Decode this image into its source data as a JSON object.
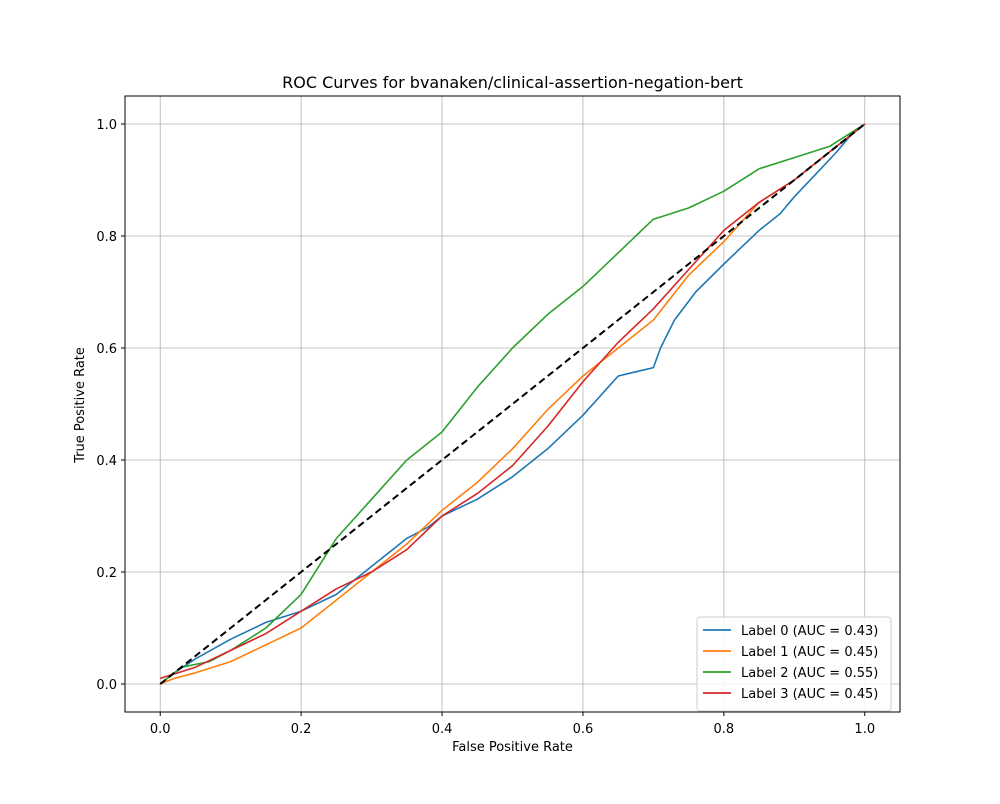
{
  "chart_data": {
    "type": "line",
    "title": "ROC Curves for bvanaken/clinical-assertion-negation-bert",
    "xlabel": "False Positive Rate",
    "ylabel": "True Positive Rate",
    "xlim": [
      -0.05,
      1.05
    ],
    "ylim": [
      -0.05,
      1.05
    ],
    "xticks": [
      "0.0",
      "0.2",
      "0.4",
      "0.6",
      "0.8",
      "1.0"
    ],
    "yticks": [
      "0.0",
      "0.2",
      "0.4",
      "0.6",
      "0.8",
      "1.0"
    ],
    "grid": true,
    "legend_position": "lower-right",
    "series": [
      {
        "name": "Label 0 (AUC = 0.43)",
        "color": "#1f77b4",
        "points": [
          [
            0,
            0
          ],
          [
            0.02,
            0.02
          ],
          [
            0.05,
            0.045
          ],
          [
            0.1,
            0.08
          ],
          [
            0.15,
            0.11
          ],
          [
            0.2,
            0.13
          ],
          [
            0.25,
            0.16
          ],
          [
            0.3,
            0.21
          ],
          [
            0.35,
            0.26
          ],
          [
            0.38,
            0.28
          ],
          [
            0.4,
            0.3
          ],
          [
            0.45,
            0.33
          ],
          [
            0.5,
            0.37
          ],
          [
            0.55,
            0.42
          ],
          [
            0.6,
            0.48
          ],
          [
            0.65,
            0.55
          ],
          [
            0.7,
            0.565
          ],
          [
            0.71,
            0.6
          ],
          [
            0.73,
            0.65
          ],
          [
            0.76,
            0.7
          ],
          [
            0.8,
            0.75
          ],
          [
            0.85,
            0.81
          ],
          [
            0.88,
            0.84
          ],
          [
            0.9,
            0.87
          ],
          [
            0.93,
            0.91
          ],
          [
            0.96,
            0.95
          ],
          [
            0.98,
            0.98
          ],
          [
            1,
            1
          ]
        ]
      },
      {
        "name": "Label 1 (AUC = 0.45)",
        "color": "#ff7f0e",
        "points": [
          [
            0,
            0
          ],
          [
            0.02,
            0.01
          ],
          [
            0.05,
            0.02
          ],
          [
            0.1,
            0.04
          ],
          [
            0.15,
            0.07
          ],
          [
            0.2,
            0.1
          ],
          [
            0.25,
            0.15
          ],
          [
            0.3,
            0.2
          ],
          [
            0.35,
            0.25
          ],
          [
            0.4,
            0.31
          ],
          [
            0.45,
            0.36
          ],
          [
            0.5,
            0.42
          ],
          [
            0.55,
            0.49
          ],
          [
            0.6,
            0.55
          ],
          [
            0.65,
            0.6
          ],
          [
            0.7,
            0.65
          ],
          [
            0.75,
            0.73
          ],
          [
            0.8,
            0.79
          ],
          [
            0.85,
            0.86
          ],
          [
            0.9,
            0.9
          ],
          [
            0.95,
            0.95
          ],
          [
            1,
            1
          ]
        ]
      },
      {
        "name": "Label 2 (AUC = 0.55)",
        "color": "#2ca02c",
        "points": [
          [
            0,
            0
          ],
          [
            0.03,
            0.03
          ],
          [
            0.07,
            0.04
          ],
          [
            0.1,
            0.06
          ],
          [
            0.15,
            0.1
          ],
          [
            0.2,
            0.16
          ],
          [
            0.25,
            0.26
          ],
          [
            0.3,
            0.33
          ],
          [
            0.35,
            0.4
          ],
          [
            0.4,
            0.45
          ],
          [
            0.45,
            0.53
          ],
          [
            0.5,
            0.6
          ],
          [
            0.55,
            0.66
          ],
          [
            0.6,
            0.71
          ],
          [
            0.65,
            0.77
          ],
          [
            0.7,
            0.83
          ],
          [
            0.75,
            0.85
          ],
          [
            0.8,
            0.88
          ],
          [
            0.85,
            0.92
          ],
          [
            0.9,
            0.94
          ],
          [
            0.95,
            0.96
          ],
          [
            1,
            1
          ]
        ]
      },
      {
        "name": "Label 3 (AUC = 0.45)",
        "color": "#d62728",
        "points": [
          [
            0,
            0.01
          ],
          [
            0.05,
            0.03
          ],
          [
            0.1,
            0.06
          ],
          [
            0.15,
            0.09
          ],
          [
            0.2,
            0.13
          ],
          [
            0.25,
            0.17
          ],
          [
            0.3,
            0.2
          ],
          [
            0.35,
            0.24
          ],
          [
            0.4,
            0.3
          ],
          [
            0.45,
            0.34
          ],
          [
            0.5,
            0.39
          ],
          [
            0.55,
            0.46
          ],
          [
            0.6,
            0.54
          ],
          [
            0.65,
            0.61
          ],
          [
            0.7,
            0.67
          ],
          [
            0.75,
            0.74
          ],
          [
            0.8,
            0.81
          ],
          [
            0.85,
            0.86
          ],
          [
            0.9,
            0.9
          ],
          [
            0.95,
            0.95
          ],
          [
            1,
            1
          ]
        ]
      },
      {
        "name": "",
        "color": "#000000",
        "dashed": true,
        "points": [
          [
            0,
            0
          ],
          [
            1,
            1
          ]
        ]
      }
    ]
  }
}
